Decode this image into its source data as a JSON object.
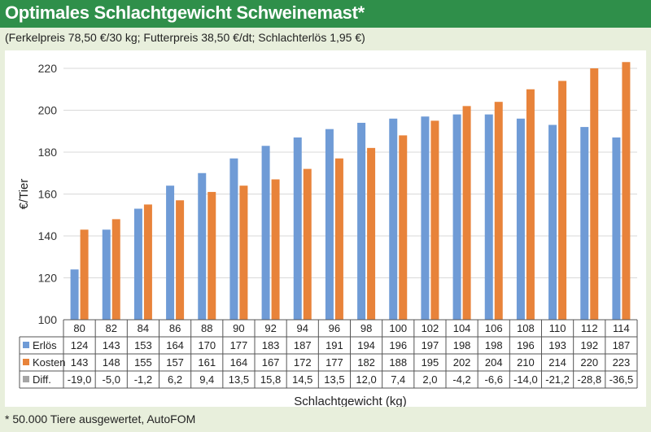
{
  "header": {
    "title": "Optimales Schlachtgewicht Schweinemast*",
    "subtitle": "(Ferkelpreis 78,50 €/30 kg; Futterpreis 38,50 €/dt; Schlachterlös 1,95 €)"
  },
  "footnote": "* 50.000 Tiere ausgewertet, AutoFOM",
  "colors": {
    "erloes": "#6f9bd6",
    "kosten": "#e8833a",
    "diff": "#a5a5a5",
    "header_green": "#2f8f4a"
  },
  "chart_data": {
    "type": "bar",
    "ylabel": "€/Tier",
    "xlabel": "Schlachtgewicht (kg)",
    "ylim": [
      100,
      220
    ],
    "yticks": [
      100,
      120,
      140,
      160,
      180,
      200,
      220
    ],
    "grid": true,
    "categories": [
      "80",
      "82",
      "84",
      "86",
      "88",
      "90",
      "92",
      "94",
      "96",
      "98",
      "100",
      "102",
      "104",
      "106",
      "108",
      "110",
      "112",
      "114"
    ],
    "series": [
      {
        "name": "Erlös",
        "values": [
          124,
          143,
          153,
          164,
          170,
          177,
          183,
          187,
          191,
          194,
          196,
          197,
          198,
          198,
          196,
          193,
          192,
          187
        ]
      },
      {
        "name": "Kosten",
        "values": [
          143,
          148,
          155,
          157,
          161,
          164,
          167,
          172,
          177,
          182,
          188,
          195,
          202,
          204,
          210,
          214,
          220,
          223
        ]
      },
      {
        "name": "Diff.",
        "values": [
          "-19,0",
          "-5,0",
          "-1,2",
          "6,2",
          "9,4",
          "13,5",
          "15,8",
          "14,5",
          "13,5",
          "12,0",
          "7,4",
          "2,0",
          "-4,2",
          "-6,6",
          "-14,0",
          "-21,2",
          "-28,8",
          "-36,5"
        ]
      }
    ]
  }
}
